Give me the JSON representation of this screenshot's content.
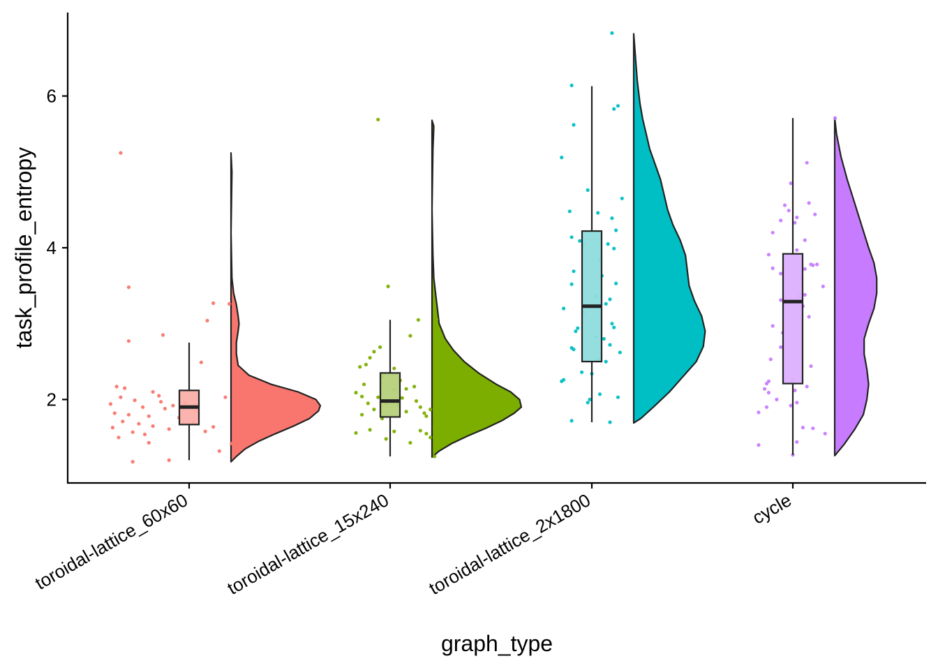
{
  "chart_data": {
    "type": "raincloud",
    "xlabel": "graph_type",
    "ylabel": "task_profile_entropy",
    "ylim": [
      0.9,
      7.1
    ],
    "yticks": [
      2,
      4,
      6
    ],
    "grid": false,
    "legend": "none",
    "categories": [
      "toroidal-lattice_60x60",
      "toroidal-lattice_15x240",
      "toroidal-lattice_2x1800",
      "cycle"
    ],
    "series": [
      {
        "category": "toroidal-lattice_60x60",
        "color": "#F8766D",
        "box_fill": "#FBAFA9",
        "box": {
          "whisker_low": 1.2,
          "q1": 1.67,
          "median": 1.9,
          "q3": 2.12,
          "whisker_high": 2.75
        },
        "density": [
          [
            1.18,
            0.0
          ],
          [
            1.25,
            0.06
          ],
          [
            1.35,
            0.16
          ],
          [
            1.45,
            0.31
          ],
          [
            1.55,
            0.5
          ],
          [
            1.65,
            0.7
          ],
          [
            1.75,
            0.88
          ],
          [
            1.85,
            0.98
          ],
          [
            1.92,
            1.0
          ],
          [
            2.0,
            0.95
          ],
          [
            2.1,
            0.75
          ],
          [
            2.2,
            0.45
          ],
          [
            2.32,
            0.2
          ],
          [
            2.45,
            0.08
          ],
          [
            2.6,
            0.06
          ],
          [
            2.75,
            0.06
          ],
          [
            2.9,
            0.08
          ],
          [
            3.0,
            0.09
          ],
          [
            3.1,
            0.08
          ],
          [
            3.25,
            0.06
          ],
          [
            3.4,
            0.03
          ],
          [
            3.6,
            0.01
          ],
          [
            4.2,
            0.0
          ],
          [
            5.0,
            0.01
          ],
          [
            5.25,
            0.0
          ]
        ],
        "points": [
          [
            -0.34,
            5.25
          ],
          [
            -0.3,
            3.48
          ],
          [
            0.12,
            3.27
          ],
          [
            0.2,
            3.26
          ],
          [
            0.09,
            3.04
          ],
          [
            -0.13,
            2.85
          ],
          [
            -0.3,
            2.77
          ],
          [
            0.06,
            2.49
          ],
          [
            -0.36,
            2.17
          ],
          [
            -0.32,
            2.15
          ],
          [
            -0.18,
            2.1
          ],
          [
            0.18,
            2.03
          ],
          [
            -0.34,
            2.03
          ],
          [
            -0.27,
            1.99
          ],
          [
            -0.14,
            1.97
          ],
          [
            -0.02,
            1.96
          ],
          [
            -0.39,
            1.94
          ],
          [
            -0.23,
            1.9
          ],
          [
            -0.12,
            1.88
          ],
          [
            0.04,
            1.85
          ],
          [
            -0.37,
            1.82
          ],
          [
            -0.3,
            1.8
          ],
          [
            -0.2,
            1.78
          ],
          [
            -0.05,
            1.76
          ],
          [
            -0.33,
            1.71
          ],
          [
            -0.25,
            1.68
          ],
          [
            -0.18,
            1.65
          ],
          [
            0.12,
            1.64
          ],
          [
            -0.38,
            1.63
          ],
          [
            -0.1,
            1.61
          ],
          [
            -0.28,
            1.57
          ],
          [
            -0.22,
            1.54
          ],
          [
            0.08,
            1.58
          ],
          [
            -0.35,
            1.5
          ],
          [
            -0.2,
            1.43
          ],
          [
            0.15,
            1.32
          ],
          [
            0.21,
            1.42
          ],
          [
            -0.1,
            1.2
          ],
          [
            -0.28,
            1.18
          ],
          [
            0.02,
            1.7
          ],
          [
            -0.08,
            1.92
          ],
          [
            -0.15,
            2.05
          ]
        ]
      },
      {
        "category": "toroidal-lattice_15x240",
        "color": "#7CAE00",
        "box_fill": "#B5D17A",
        "box": {
          "whisker_low": 1.25,
          "q1": 1.77,
          "median": 1.98,
          "q3": 2.35,
          "whisker_high": 3.05
        },
        "density": [
          [
            1.24,
            0.0
          ],
          [
            1.32,
            0.08
          ],
          [
            1.42,
            0.22
          ],
          [
            1.52,
            0.4
          ],
          [
            1.62,
            0.6
          ],
          [
            1.72,
            0.78
          ],
          [
            1.82,
            0.92
          ],
          [
            1.9,
            1.0
          ],
          [
            2.0,
            0.98
          ],
          [
            2.1,
            0.88
          ],
          [
            2.2,
            0.72
          ],
          [
            2.35,
            0.52
          ],
          [
            2.5,
            0.36
          ],
          [
            2.65,
            0.24
          ],
          [
            2.8,
            0.15
          ],
          [
            3.0,
            0.08
          ],
          [
            3.2,
            0.06
          ],
          [
            3.4,
            0.04
          ],
          [
            3.6,
            0.02
          ],
          [
            3.9,
            0.01
          ],
          [
            4.5,
            0.0
          ],
          [
            5.3,
            0.01
          ],
          [
            5.6,
            0.02
          ],
          [
            5.68,
            0.0
          ]
        ],
        "points": [
          [
            -0.06,
            5.69
          ],
          [
            -0.01,
            3.49
          ],
          [
            0.23,
            3.06
          ],
          [
            0.14,
            3.05
          ],
          [
            0.1,
            2.84
          ],
          [
            -0.05,
            2.69
          ],
          [
            -0.08,
            2.63
          ],
          [
            -0.1,
            2.55
          ],
          [
            -0.12,
            2.46
          ],
          [
            -0.15,
            2.43
          ],
          [
            0.02,
            2.41
          ],
          [
            -0.04,
            2.3
          ],
          [
            -0.13,
            2.2
          ],
          [
            0.12,
            2.17
          ],
          [
            0.08,
            2.14
          ],
          [
            0.02,
            2.13
          ],
          [
            -0.17,
            2.09
          ],
          [
            -0.14,
            2.04
          ],
          [
            -0.06,
            2.03
          ],
          [
            0.06,
            2.02
          ],
          [
            0.13,
            1.98
          ],
          [
            -0.11,
            1.95
          ],
          [
            -0.02,
            1.94
          ],
          [
            0.04,
            1.93
          ],
          [
            0.15,
            1.9
          ],
          [
            0.2,
            1.87
          ],
          [
            -0.08,
            1.87
          ],
          [
            0.08,
            1.84
          ],
          [
            0.17,
            1.82
          ],
          [
            -0.14,
            1.8
          ],
          [
            -0.04,
            1.75
          ],
          [
            0.18,
            1.78
          ],
          [
            0.22,
            1.63
          ],
          [
            0.15,
            1.59
          ],
          [
            0.18,
            1.55
          ],
          [
            0.2,
            1.5
          ],
          [
            -0.1,
            1.6
          ],
          [
            -0.17,
            1.56
          ],
          [
            0.02,
            1.58
          ],
          [
            0.1,
            1.43
          ],
          [
            0.22,
            1.25
          ],
          [
            -0.02,
            1.48
          ],
          [
            0.05,
            2.25
          ]
        ]
      },
      {
        "category": "toroidal-lattice_2x1800",
        "color": "#00BFC4",
        "box_fill": "#8FDCDD",
        "box": {
          "whisker_low": 1.7,
          "q1": 2.5,
          "median": 3.23,
          "q3": 4.22,
          "whisker_high": 6.13
        },
        "density": [
          [
            1.69,
            0.0
          ],
          [
            1.75,
            0.08
          ],
          [
            1.9,
            0.22
          ],
          [
            2.1,
            0.4
          ],
          [
            2.3,
            0.55
          ],
          [
            2.5,
            0.7
          ],
          [
            2.7,
            0.78
          ],
          [
            2.9,
            0.8
          ],
          [
            3.1,
            0.76
          ],
          [
            3.3,
            0.68
          ],
          [
            3.5,
            0.62
          ],
          [
            3.7,
            0.6
          ],
          [
            3.9,
            0.58
          ],
          [
            4.1,
            0.52
          ],
          [
            4.3,
            0.44
          ],
          [
            4.5,
            0.38
          ],
          [
            4.7,
            0.34
          ],
          [
            4.9,
            0.3
          ],
          [
            5.1,
            0.24
          ],
          [
            5.3,
            0.18
          ],
          [
            5.5,
            0.14
          ],
          [
            5.7,
            0.1
          ],
          [
            5.9,
            0.07
          ],
          [
            6.2,
            0.04
          ],
          [
            6.5,
            0.02
          ],
          [
            6.82,
            0.0
          ]
        ],
        "points": [
          [
            0.1,
            6.83
          ],
          [
            -0.1,
            6.14
          ],
          [
            0.13,
            5.87
          ],
          [
            0.11,
            5.83
          ],
          [
            -0.09,
            5.62
          ],
          [
            -0.15,
            5.19
          ],
          [
            -0.02,
            4.76
          ],
          [
            0.15,
            4.65
          ],
          [
            -0.11,
            4.48
          ],
          [
            0.03,
            4.46
          ],
          [
            0.1,
            4.39
          ],
          [
            0.12,
            4.23
          ],
          [
            -0.1,
            4.14
          ],
          [
            -0.06,
            4.09
          ],
          [
            -0.04,
            4.04
          ],
          [
            0.08,
            4.05
          ],
          [
            0.11,
            3.99
          ],
          [
            0.04,
            3.85
          ],
          [
            -0.09,
            3.69
          ],
          [
            0.05,
            3.63
          ],
          [
            0.12,
            3.53
          ],
          [
            -0.1,
            3.52
          ],
          [
            0.02,
            3.36
          ],
          [
            0.09,
            3.32
          ],
          [
            0.07,
            3.26
          ],
          [
            -0.14,
            3.2
          ],
          [
            -0.04,
            3.15
          ],
          [
            0.1,
            3.0
          ],
          [
            0.11,
            2.95
          ],
          [
            0.02,
            2.82
          ],
          [
            0.06,
            2.8
          ],
          [
            -0.08,
            2.9
          ],
          [
            0.09,
            2.72
          ],
          [
            0.14,
            2.62
          ],
          [
            -0.1,
            2.68
          ],
          [
            -0.09,
            2.66
          ],
          [
            0.03,
            2.52
          ],
          [
            0.07,
            2.5
          ],
          [
            -0.05,
            2.36
          ],
          [
            -0.14,
            2.26
          ],
          [
            -0.15,
            2.24
          ],
          [
            0.04,
            2.07
          ],
          [
            0.13,
            2.03
          ],
          [
            -0.01,
            2.0
          ],
          [
            -0.02,
            1.96
          ],
          [
            -0.1,
            1.72
          ],
          [
            0.09,
            1.7
          ],
          [
            0.0,
            2.34
          ],
          [
            -0.07,
            2.94
          ]
        ]
      },
      {
        "category": "cycle",
        "color": "#C77CFF",
        "box_fill": "#DDB0FF",
        "box": {
          "whisker_low": 1.27,
          "q1": 2.21,
          "median": 3.29,
          "q3": 3.92,
          "whisker_high": 5.71
        },
        "density": [
          [
            1.26,
            0.0
          ],
          [
            1.4,
            0.1
          ],
          [
            1.6,
            0.22
          ],
          [
            1.8,
            0.32
          ],
          [
            2.0,
            0.36
          ],
          [
            2.2,
            0.38
          ],
          [
            2.4,
            0.36
          ],
          [
            2.6,
            0.33
          ],
          [
            2.8,
            0.33
          ],
          [
            3.0,
            0.38
          ],
          [
            3.2,
            0.44
          ],
          [
            3.4,
            0.47
          ],
          [
            3.6,
            0.47
          ],
          [
            3.8,
            0.44
          ],
          [
            4.0,
            0.38
          ],
          [
            4.3,
            0.3
          ],
          [
            4.6,
            0.22
          ],
          [
            4.9,
            0.14
          ],
          [
            5.2,
            0.07
          ],
          [
            5.5,
            0.02
          ],
          [
            5.71,
            0.0
          ]
        ],
        "points": [
          [
            0.21,
            5.71
          ],
          [
            0.07,
            5.12
          ],
          [
            -0.01,
            4.85
          ],
          [
            0.08,
            4.59
          ],
          [
            -0.04,
            4.56
          ],
          [
            0.11,
            4.44
          ],
          [
            -0.02,
            4.49
          ],
          [
            0.02,
            4.4
          ],
          [
            -0.06,
            4.36
          ],
          [
            0.01,
            4.33
          ],
          [
            -0.1,
            4.2
          ],
          [
            0.06,
            4.1
          ],
          [
            0.02,
            3.97
          ],
          [
            -0.12,
            3.91
          ],
          [
            0.09,
            3.78
          ],
          [
            0.1,
            3.77
          ],
          [
            0.06,
            3.72
          ],
          [
            0.12,
            3.78
          ],
          [
            -0.1,
            3.73
          ],
          [
            -0.06,
            3.66
          ],
          [
            0.04,
            3.61
          ],
          [
            0.15,
            3.49
          ],
          [
            0.03,
            3.36
          ],
          [
            0.06,
            3.38
          ],
          [
            0.05,
            3.23
          ],
          [
            -0.06,
            3.31
          ],
          [
            0.08,
            3.09
          ],
          [
            -0.1,
            2.97
          ],
          [
            -0.05,
            2.88
          ],
          [
            -0.06,
            2.69
          ],
          [
            0.09,
            2.44
          ],
          [
            -0.11,
            2.53
          ],
          [
            0.0,
            2.26
          ],
          [
            -0.12,
            2.24
          ],
          [
            -0.13,
            2.21
          ],
          [
            -0.14,
            2.14
          ],
          [
            -0.12,
            2.09
          ],
          [
            -0.08,
            2.0
          ],
          [
            0.07,
            2.17
          ],
          [
            0.02,
            1.96
          ],
          [
            -0.01,
            1.92
          ],
          [
            -0.13,
            1.9
          ],
          [
            0.01,
            2.12
          ],
          [
            -0.17,
            1.83
          ],
          [
            0.05,
            1.63
          ],
          [
            0.1,
            1.62
          ],
          [
            0.16,
            1.55
          ],
          [
            -0.17,
            1.4
          ],
          [
            0.02,
            1.44
          ],
          [
            0.0,
            1.27
          ]
        ]
      }
    ]
  }
}
